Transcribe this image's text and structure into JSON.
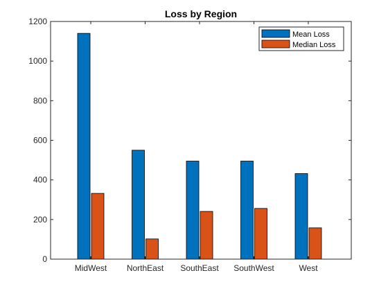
{
  "chart_data": {
    "type": "bar",
    "title": "Loss by Region",
    "xlabel": "",
    "ylabel": "",
    "categories": [
      "MidWest",
      "NorthEast",
      "SouthEast",
      "SouthWest",
      "West"
    ],
    "series": [
      {
        "name": "Mean Loss",
        "values": [
          1140,
          550,
          495,
          495,
          432
        ],
        "color": "#0072BD"
      },
      {
        "name": "Median Loss",
        "values": [
          332,
          102,
          241,
          256,
          158
        ],
        "color": "#D95319"
      }
    ],
    "ylim": [
      0,
      1200
    ],
    "yticks": [
      0,
      200,
      400,
      600,
      800,
      1000,
      1200
    ],
    "grid": false,
    "legend_position": "top-right"
  }
}
